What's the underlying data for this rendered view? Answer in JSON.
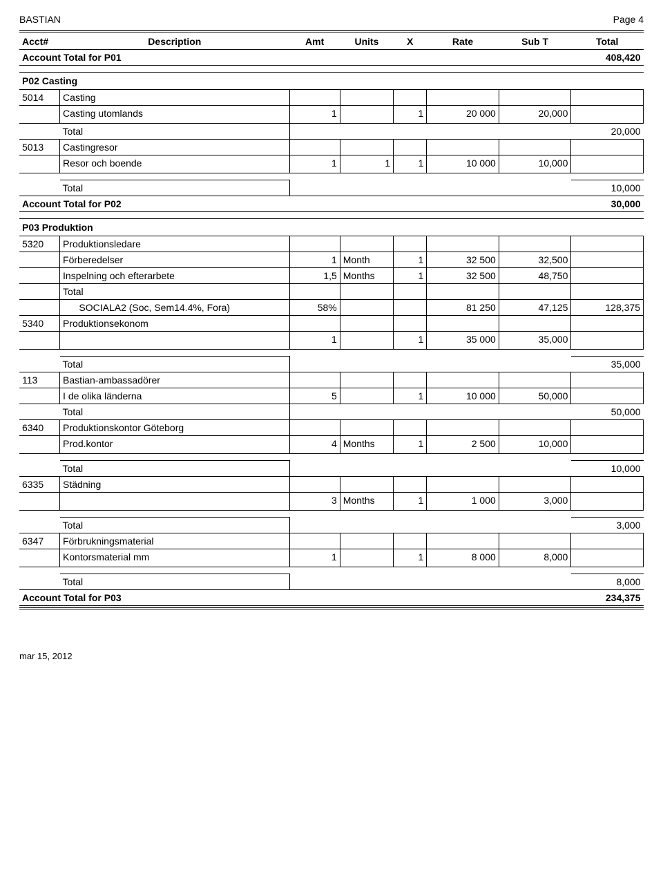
{
  "header": {
    "title": "BASTIAN",
    "page": "Page 4"
  },
  "columns": {
    "acct": "Acct#",
    "desc": "Description",
    "amt": "Amt",
    "units": "Units",
    "x": "X",
    "rate": "Rate",
    "subt": "Sub T",
    "total": "Total"
  },
  "account_total_p01": {
    "label": "Account Total for P01",
    "value": "408,420"
  },
  "p02": {
    "heading": "P02  Casting",
    "acct_5014": {
      "code": "5014",
      "name": "Casting",
      "line1": {
        "desc": "Casting utomlands",
        "amt": "1",
        "x": "1",
        "rate": "20 000",
        "subt": "20,000"
      },
      "total": {
        "label": "Total",
        "value": "20,000"
      }
    },
    "acct_5013": {
      "code": "5013",
      "name": "Castingresor",
      "line1": {
        "desc": "Resor och boende",
        "amt": "1",
        "units": "1",
        "x": "1",
        "rate": "10 000",
        "subt": "10,000"
      },
      "total": {
        "label": "Total",
        "value": "10,000"
      }
    },
    "account_total": {
      "label": "Account Total for P02",
      "value": "30,000"
    }
  },
  "p03": {
    "heading": "P03  Produktion",
    "acct_5320": {
      "code": "5320",
      "name": "Produktionsledare",
      "line1": {
        "desc": "Förberedelser",
        "amt": "1",
        "units": "Month",
        "x": "1",
        "rate": "32 500",
        "subt": "32,500"
      },
      "line2": {
        "desc": "Inspelning och efterarbete",
        "amt": "1,5",
        "units": "Months",
        "x": "1",
        "rate": "32 500",
        "subt": "48,750"
      },
      "line3": {
        "desc": "Total"
      },
      "line4": {
        "desc": "      SOCIALA2 (Soc, Sem14.4%, Fora)",
        "amt": "58%",
        "rate": "81 250",
        "subt": "47,125",
        "total": "128,375"
      }
    },
    "acct_5340": {
      "code": "5340",
      "name": "Produktionsekonom",
      "line1": {
        "amt": "1",
        "x": "1",
        "rate": "35 000",
        "subt": "35,000"
      },
      "total": {
        "label": "Total",
        "value": "35,000"
      }
    },
    "acct_113": {
      "code": "113",
      "name": "Bastian-ambassadörer",
      "line1": {
        "desc": "I de olika länderna",
        "amt": "5",
        "x": "1",
        "rate": "10 000",
        "subt": "50,000"
      },
      "total": {
        "label": "Total",
        "value": "50,000"
      }
    },
    "acct_6340": {
      "code": "6340",
      "name": "Produktionskontor Göteborg",
      "line1": {
        "desc": "Prod.kontor",
        "amt": "4",
        "units": "Months",
        "x": "1",
        "rate": "2 500",
        "subt": "10,000"
      },
      "total": {
        "label": "Total",
        "value": "10,000"
      }
    },
    "acct_6335": {
      "code": "6335",
      "name": "Städning",
      "line1": {
        "amt": "3",
        "units": "Months",
        "x": "1",
        "rate": "1 000",
        "subt": "3,000"
      },
      "total": {
        "label": "Total",
        "value": "3,000"
      }
    },
    "acct_6347": {
      "code": "6347",
      "name": "Förbrukningsmaterial",
      "line1": {
        "desc": "Kontorsmaterial mm",
        "amt": "1",
        "x": "1",
        "rate": "8 000",
        "subt": "8,000"
      },
      "total": {
        "label": "Total",
        "value": "8,000"
      }
    },
    "account_total": {
      "label": "Account Total for P03",
      "value": "234,375"
    }
  },
  "footer": {
    "date": "mar 15, 2012"
  }
}
